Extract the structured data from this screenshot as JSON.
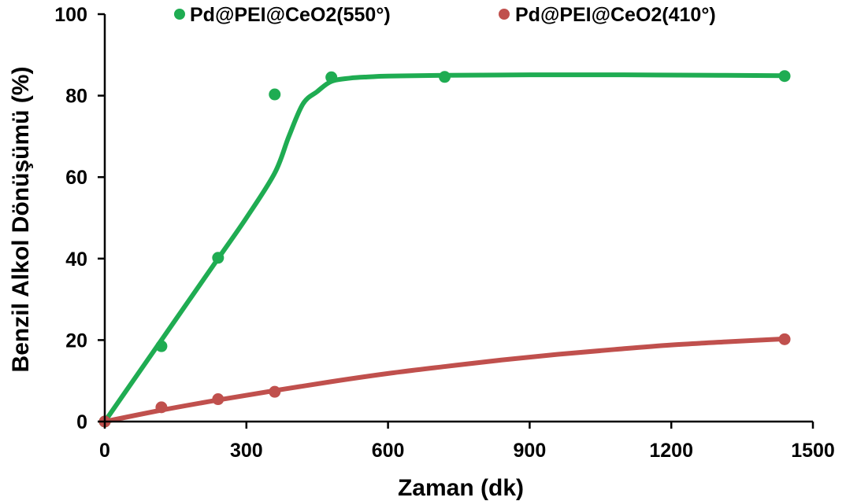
{
  "chart_data": {
    "type": "scatter",
    "xlabel": "Zaman (dk)",
    "ylabel": "Benzil Alkol Dönüşümü (%)",
    "xlim": [
      0,
      1500
    ],
    "ylim": [
      0,
      100
    ],
    "xticks": [
      "0",
      "300",
      "600",
      "900",
      "1200",
      "1500"
    ],
    "yticks": [
      "0",
      "20",
      "40",
      "60",
      "80",
      "100"
    ],
    "grid": false,
    "legend_position": "top",
    "series": [
      {
        "name": "Pd@PEI@CeO2(550°)",
        "color": "#1fac52",
        "x": [
          0,
          120,
          240,
          360,
          480,
          720,
          1440
        ],
        "y": [
          0,
          18.5,
          40.2,
          80.3,
          84.5,
          84.6,
          84.8
        ],
        "trend_x": [
          0,
          60,
          120,
          180,
          240,
          300,
          360,
          390,
          420,
          450,
          480,
          520,
          560,
          600,
          720,
          900,
          1100,
          1300,
          1440
        ],
        "trend_y": [
          0,
          10,
          20,
          30,
          40,
          50,
          61,
          70,
          78,
          81,
          83.5,
          84.3,
          84.6,
          84.8,
          85,
          85.1,
          85.1,
          85,
          84.9
        ]
      },
      {
        "name": "Pd@PEI@CeO2(410°)",
        "color": "#c0504d",
        "x": [
          0,
          120,
          240,
          360,
          1440
        ],
        "y": [
          0,
          3.5,
          5.5,
          7.3,
          20.2
        ],
        "trend_x": [
          0,
          120,
          240,
          360,
          480,
          600,
          720,
          840,
          960,
          1080,
          1200,
          1320,
          1440
        ],
        "trend_y": [
          0,
          2.8,
          5.3,
          7.6,
          9.8,
          11.8,
          13.5,
          15.1,
          16.5,
          17.7,
          18.8,
          19.6,
          20.3
        ]
      }
    ]
  }
}
